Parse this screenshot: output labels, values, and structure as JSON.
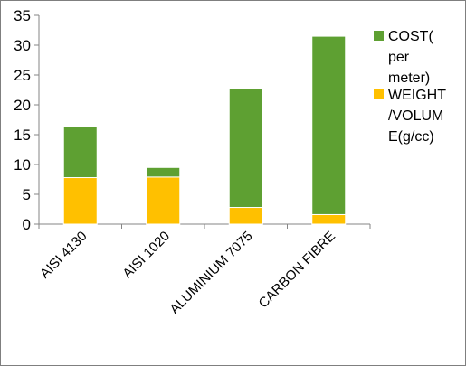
{
  "chart_data": {
    "type": "bar",
    "stacked": true,
    "categories": [
      "AISI 4130",
      "AISI 1020",
      "ALUMINIUM 7075",
      "CARBON FIBRE"
    ],
    "series": [
      {
        "name": "WEIGHT\n/VOLUM\nE(g/cc)",
        "color": "#ffc000",
        "values": [
          7.8,
          7.9,
          2.8,
          1.6
        ]
      },
      {
        "name": "COST(\nper\nmeter)",
        "color": "#5ea032",
        "values": [
          8.5,
          1.6,
          20.0,
          29.9
        ]
      }
    ],
    "ylim": [
      0,
      35
    ],
    "yticks": [
      0,
      5,
      10,
      15,
      20,
      25,
      30,
      35
    ],
    "grid": false,
    "legend": "right",
    "legend_order": [
      1,
      0
    ]
  }
}
